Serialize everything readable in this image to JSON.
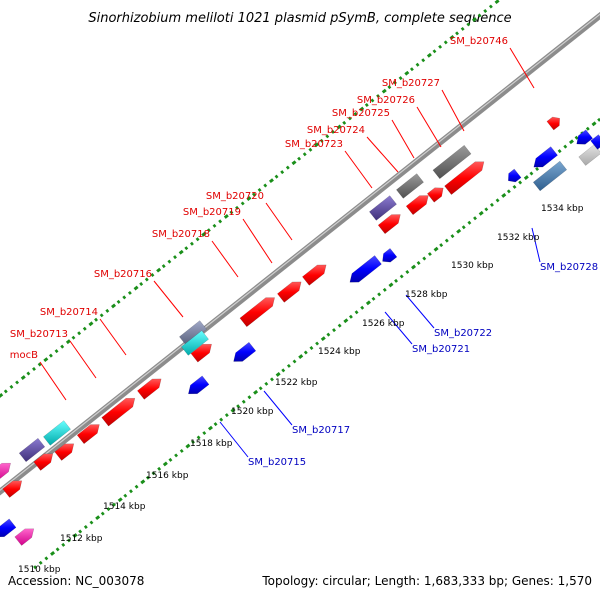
{
  "title": "Sinorhizobium meliloti 1021 plasmid pSymB, complete sequence",
  "footer": {
    "accession": "Accession: NC_003078",
    "topology": "Topology: circular; Length: 1,683,333 bp; Genes: 1,570"
  },
  "colors": {
    "forward_gene": "#ff0000",
    "reverse_gene": "#0000ff",
    "forward_label": "#e00000",
    "reverse_label": "#0000c0",
    "backbone": "#8c8c8c",
    "gc_dots": "#1a8f1a"
  },
  "ticks": [
    {
      "label": "1510 kbp"
    },
    {
      "label": "1512 kbp"
    },
    {
      "label": "1514 kbp"
    },
    {
      "label": "1516 kbp"
    },
    {
      "label": "1518 kbp"
    },
    {
      "label": "1520 kbp"
    },
    {
      "label": "1522 kbp"
    },
    {
      "label": "1524 kbp"
    },
    {
      "label": "1526 kbp"
    },
    {
      "label": "1528 kbp"
    },
    {
      "label": "1530 kbp"
    },
    {
      "label": "1532 kbp"
    },
    {
      "label": "1534 kbp"
    }
  ],
  "forward_labels": [
    {
      "text": "mocB"
    },
    {
      "text": "SM_b20713"
    },
    {
      "text": "SM_b20714"
    },
    {
      "text": "SM_b20716"
    },
    {
      "text": "SM_b20718"
    },
    {
      "text": "SM_b20719"
    },
    {
      "text": "SM_b20720"
    },
    {
      "text": "SM_b20723"
    },
    {
      "text": "SM_b20724"
    },
    {
      "text": "SM_b20725"
    },
    {
      "text": "SM_b20726"
    },
    {
      "text": "SM_b20727"
    },
    {
      "text": "SM_b20746"
    }
  ],
  "reverse_labels": [
    {
      "text": "SM_b20715"
    },
    {
      "text": "SM_b20717"
    },
    {
      "text": "SM_b20721"
    },
    {
      "text": "SM_b20722"
    },
    {
      "text": "SM_b20728"
    }
  ]
}
